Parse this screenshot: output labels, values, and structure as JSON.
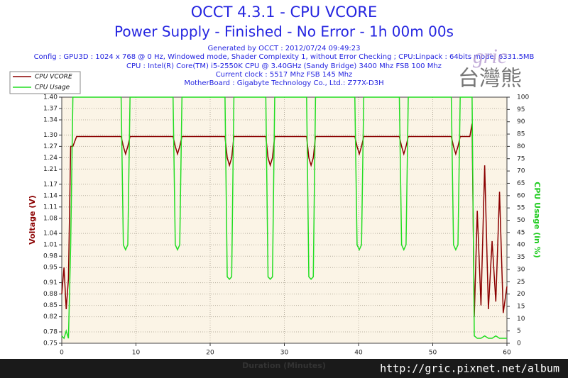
{
  "chart_data": {
    "type": "line",
    "title": "OCCT 4.3.1 - CPU VCORE",
    "subtitle": "Power Supply - Finished - No Error - 1h 00m 00s",
    "info_lines": [
      "Generated by OCCT : 2012/07/24 09:49:23",
      "Config : GPU3D : 1024 x 768 @ 0 Hz, Windowed mode, Shader Complexity 1, without Error Checking ; CPU:Linpack : 64bits mode, 6331.5MB",
      "CPU : Intel(R) Core(TM) i5-2550K CPU @ 3.40GHz (Sandy Bridge) 3400 Mhz FSB 100 Mhz",
      "Current clock : 5517 Mhz FSB 145 Mhz",
      "MotherBoard : Gigabyte Technology Co., Ltd.: Z77X-D3H"
    ],
    "xlabel": "Duration (Minutes)",
    "ylabel": "Voltage (V)",
    "y2label": "CPU Usage (in %)",
    "watermark": "http://gric.pixnet.net/album",
    "logo_text": "gric",
    "logo_chars": "台灣熊",
    "grid": true,
    "legend": "top-left",
    "xlim": [
      0,
      60
    ],
    "xticks": [
      0,
      10,
      20,
      30,
      40,
      50,
      60
    ],
    "ylim": [
      0.75,
      1.4
    ],
    "yticks": [
      0.75,
      0.78,
      0.82,
      0.85,
      0.88,
      0.91,
      0.95,
      0.98,
      1.01,
      1.04,
      1.08,
      1.11,
      1.14,
      1.17,
      1.21,
      1.24,
      1.27,
      {
        "value": 1.3,
        "label": "1.30"
      },
      1.34,
      1.37,
      {
        "value": 1.4,
        "label": "1.40"
      }
    ],
    "y2lim": [
      0,
      100
    ],
    "y2ticks": [
      0,
      5,
      10,
      15,
      20,
      25,
      30,
      35,
      40,
      45,
      50,
      55,
      60,
      65,
      70,
      75,
      80,
      85,
      90,
      95,
      100
    ],
    "x": [
      0,
      0.3,
      0.6,
      0.9,
      1.2,
      1.5,
      2,
      8,
      8.3,
      8.6,
      8.9,
      9.2,
      15,
      15.3,
      15.6,
      15.9,
      16.2,
      22,
      22.3,
      22.6,
      22.9,
      23.2,
      27.5,
      27.8,
      28.1,
      28.4,
      28.7,
      33,
      33.3,
      33.6,
      33.9,
      34.2,
      39.5,
      39.8,
      40.1,
      40.4,
      40.7,
      45.5,
      45.8,
      46.1,
      46.4,
      46.7,
      52.5,
      52.8,
      53.1,
      53.4,
      53.7,
      55,
      55.3,
      55.6,
      56,
      56.5,
      57,
      57.5,
      58,
      58.5,
      59,
      59.5,
      60
    ],
    "series": [
      {
        "name": "CPU VCORE",
        "color": "#8b0000",
        "values": [
          0.88,
          0.95,
          0.84,
          0.92,
          1.27,
          1.27,
          1.296,
          1.296,
          1.27,
          1.25,
          1.27,
          1.296,
          1.296,
          1.27,
          1.25,
          1.27,
          1.296,
          1.296,
          1.24,
          1.22,
          1.24,
          1.296,
          1.296,
          1.24,
          1.22,
          1.24,
          1.296,
          1.296,
          1.24,
          1.22,
          1.24,
          1.296,
          1.296,
          1.27,
          1.25,
          1.27,
          1.296,
          1.296,
          1.27,
          1.25,
          1.27,
          1.296,
          1.296,
          1.27,
          1.25,
          1.27,
          1.296,
          1.296,
          1.33,
          0.82,
          1.1,
          0.85,
          1.22,
          0.84,
          1.02,
          0.86,
          1.15,
          0.83,
          0.9
        ]
      },
      {
        "name": "CPU Usage",
        "color": "#22dd22",
        "axis": "y2",
        "values": [
          3,
          2,
          5,
          2,
          40,
          100,
          100,
          100,
          40,
          38,
          40,
          100,
          100,
          40,
          38,
          40,
          100,
          100,
          27,
          26,
          27,
          100,
          100,
          27,
          26,
          27,
          100,
          100,
          27,
          26,
          27,
          100,
          100,
          40,
          38,
          40,
          100,
          100,
          40,
          38,
          40,
          100,
          100,
          40,
          38,
          40,
          100,
          100,
          100,
          3,
          2,
          2,
          3,
          2,
          2,
          3,
          2,
          2,
          2
        ]
      }
    ]
  }
}
